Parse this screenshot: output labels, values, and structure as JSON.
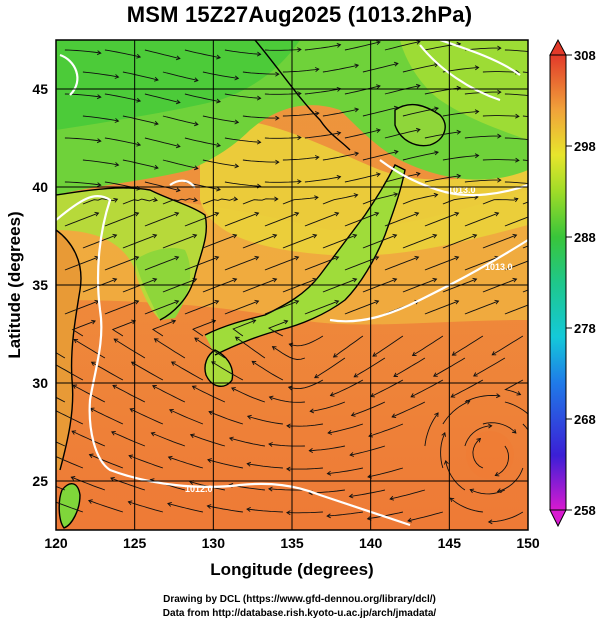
{
  "title": "MSM 15Z27Aug2025 (1013.2hPa)",
  "map": {
    "xlabel": "Longitude (degrees)",
    "ylabel": "Latitude  (degrees)",
    "xlim": [
      120,
      150
    ],
    "ylim": [
      22.5,
      47.5
    ],
    "x_ticks": [
      120,
      125,
      130,
      135,
      140,
      145,
      150
    ],
    "y_ticks": [
      25,
      30,
      35,
      40,
      45
    ],
    "contour_labels": [
      "1013.0",
      "1013.0",
      "1012.0"
    ]
  },
  "colorbar": {
    "min": 258,
    "max": 308,
    "tick_labels": [
      "308",
      "298",
      "288",
      "278",
      "268",
      "258"
    ],
    "tick_values": [
      308,
      298,
      288,
      278,
      268,
      258
    ]
  },
  "colors": {
    "ocean_south": "#ef7f3a",
    "ocean_mid": "#f0a23f",
    "land_warm": "#e9c02f",
    "land_green": "#7fd63a",
    "north_green": "#3fc93a"
  },
  "credits": {
    "line1": "Drawing by DCL (https://www.gfd-dennou.org/library/dcl/)",
    "line2": "Data from http://database.rish.kyoto-u.ac.jp/arch/jmadata/"
  }
}
